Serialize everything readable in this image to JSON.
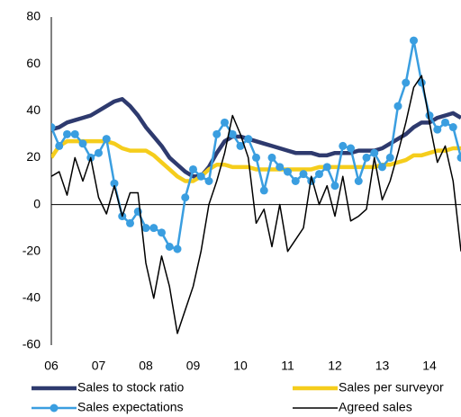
{
  "chart_data": {
    "type": "line",
    "categories": [
      "06",
      null,
      null,
      null,
      null,
      null,
      "07",
      null,
      null,
      null,
      null,
      null,
      "08",
      null,
      null,
      null,
      null,
      null,
      "09",
      null,
      null,
      null,
      null,
      null,
      "10",
      null,
      null,
      null,
      null,
      null,
      "11",
      null,
      null,
      null,
      null,
      null,
      "12",
      null,
      null,
      null,
      null,
      null,
      "13",
      null,
      null,
      null,
      null,
      null,
      "14",
      null,
      null,
      null,
      null
    ],
    "ylim": [
      -60,
      80
    ],
    "yticks": [
      -60,
      -40,
      -20,
      0,
      20,
      40,
      60,
      80
    ],
    "series": [
      {
        "name": "Sales to stock ratio",
        "color": "#2e3a6e",
        "width": 4.5,
        "markers": false,
        "values": [
          32,
          33,
          35,
          36,
          37,
          38,
          40,
          42,
          44,
          45,
          42,
          38,
          33,
          29,
          25,
          20,
          17,
          14,
          12,
          12,
          16,
          22,
          27,
          29,
          29,
          28,
          27,
          26,
          25,
          24,
          23,
          22,
          22,
          22,
          21,
          21,
          22,
          22,
          22,
          23,
          23,
          23,
          24,
          26,
          28,
          30,
          33,
          35,
          35,
          37,
          38,
          39,
          37
        ]
      },
      {
        "name": "Sales per surveyor",
        "color": "#f5cd1c",
        "width": 4.5,
        "markers": false,
        "values": [
          20,
          25,
          27,
          27,
          27,
          27,
          27,
          27,
          26,
          24,
          23,
          23,
          23,
          21,
          18,
          15,
          12,
          10,
          10,
          12,
          15,
          17,
          17,
          16,
          16,
          16,
          15,
          15,
          15,
          15,
          15,
          15,
          15,
          15,
          16,
          16,
          16,
          16,
          16,
          16,
          16,
          16,
          17,
          17,
          18,
          19,
          21,
          21,
          22,
          23,
          23,
          24,
          24
        ]
      },
      {
        "name": "Sales expectations",
        "color": "#3a9ee0",
        "width": 2.5,
        "markers": true,
        "values": [
          33,
          25,
          30,
          30,
          26,
          20,
          22,
          28,
          9,
          -5,
          -8,
          -3,
          -10,
          -10,
          -12,
          -18,
          -19,
          3,
          15,
          12,
          10,
          30,
          35,
          30,
          25,
          28,
          20,
          6,
          20,
          16,
          14,
          10,
          13,
          10,
          13,
          16,
          8,
          25,
          24,
          10,
          20,
          22,
          16,
          20,
          42,
          52,
          70,
          52,
          38,
          32,
          35,
          33,
          20
        ]
      },
      {
        "name": "Agreed sales",
        "color": "#000000",
        "width": 1.5,
        "markers": false,
        "values": [
          12,
          14,
          4,
          20,
          10,
          20,
          3,
          -4,
          8,
          -5,
          5,
          5,
          -25,
          -40,
          -22,
          -35,
          -55,
          -45,
          -35,
          -20,
          0,
          10,
          22,
          38,
          30,
          20,
          -8,
          -2,
          -18,
          0,
          -20,
          -15,
          -10,
          12,
          0,
          8,
          -5,
          12,
          -7,
          -5,
          -2,
          20,
          2,
          10,
          22,
          35,
          50,
          55,
          35,
          18,
          25,
          10,
          -20
        ]
      }
    ]
  }
}
